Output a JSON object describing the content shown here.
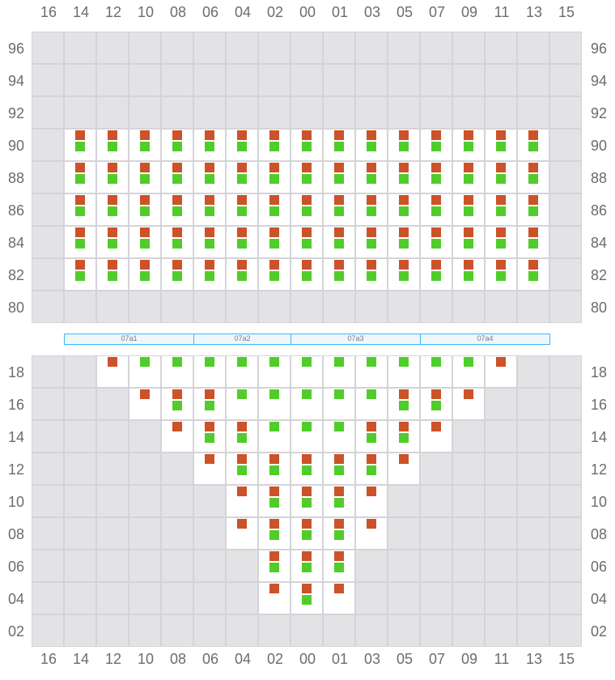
{
  "colors": {
    "orange": "#cc5229",
    "green": "#50cd2a",
    "unavailable": "#e3e3e6",
    "empty": "#ffffff",
    "zone_border": "#3bb8f0",
    "zone_fill": "#eef6fe"
  },
  "columns": [
    "16",
    "14",
    "12",
    "10",
    "08",
    "06",
    "04",
    "02",
    "00",
    "01",
    "03",
    "05",
    "07",
    "09",
    "11",
    "13",
    "15"
  ],
  "zones": [
    {
      "label": "07a1",
      "span": 4
    },
    {
      "label": "07a2",
      "span": 3
    },
    {
      "label": "07a3",
      "span": 4
    },
    {
      "label": "07a4",
      "span": 4
    }
  ],
  "upper_section": {
    "rows": [
      {
        "label": "96",
        "cells": [
          "x",
          "x",
          "x",
          "x",
          "x",
          "x",
          "x",
          "x",
          "x",
          "x",
          "x",
          "x",
          "x",
          "x",
          "x",
          "x",
          "x"
        ]
      },
      {
        "label": "94",
        "cells": [
          "x",
          "x",
          "x",
          "x",
          "x",
          "x",
          "x",
          "x",
          "x",
          "x",
          "x",
          "x",
          "x",
          "x",
          "x",
          "x",
          "x"
        ]
      },
      {
        "label": "92",
        "cells": [
          "x",
          "x",
          "x",
          "x",
          "x",
          "x",
          "x",
          "x",
          "x",
          "x",
          "x",
          "x",
          "x",
          "x",
          "x",
          "x",
          "x"
        ]
      },
      {
        "label": "90",
        "cells": [
          "x",
          "og",
          "og",
          "og",
          "og",
          "og",
          "og",
          "og",
          "og",
          "og",
          "og",
          "og",
          "og",
          "og",
          "og",
          "og",
          "x"
        ]
      },
      {
        "label": "88",
        "cells": [
          "x",
          "og",
          "og",
          "og",
          "og",
          "og",
          "og",
          "og",
          "og",
          "og",
          "og",
          "og",
          "og",
          "og",
          "og",
          "og",
          "x"
        ]
      },
      {
        "label": "86",
        "cells": [
          "x",
          "og",
          "og",
          "og",
          "og",
          "og",
          "og",
          "og",
          "og",
          "og",
          "og",
          "og",
          "og",
          "og",
          "og",
          "og",
          "x"
        ]
      },
      {
        "label": "84",
        "cells": [
          "x",
          "og",
          "og",
          "og",
          "og",
          "og",
          "og",
          "og",
          "og",
          "og",
          "og",
          "og",
          "og",
          "og",
          "og",
          "og",
          "x"
        ]
      },
      {
        "label": "82",
        "cells": [
          "x",
          "og",
          "og",
          "og",
          "og",
          "og",
          "og",
          "og",
          "og",
          "og",
          "og",
          "og",
          "og",
          "og",
          "og",
          "og",
          "x"
        ]
      },
      {
        "label": "80",
        "cells": [
          "x",
          "x",
          "x",
          "x",
          "x",
          "x",
          "x",
          "x",
          "x",
          "x",
          "x",
          "x",
          "x",
          "x",
          "x",
          "x",
          "x"
        ]
      }
    ]
  },
  "lower_section": {
    "rows": [
      {
        "label": "18",
        "cells": [
          "x",
          "x",
          "o",
          "g",
          "g",
          "g",
          "g",
          "g",
          "g",
          "g",
          "g",
          "g",
          "g",
          "g",
          "o",
          "x",
          "x"
        ]
      },
      {
        "label": "16",
        "cells": [
          "x",
          "x",
          "x",
          "o",
          "og",
          "og",
          "g",
          "g",
          "g",
          "g",
          "g",
          "og",
          "og",
          "o",
          "x",
          "x",
          "x"
        ]
      },
      {
        "label": "14",
        "cells": [
          "x",
          "x",
          "x",
          "x",
          "o",
          "og",
          "og",
          "g",
          "g",
          "g",
          "og",
          "og",
          "o",
          "x",
          "x",
          "x",
          "x"
        ]
      },
      {
        "label": "12",
        "cells": [
          "x",
          "x",
          "x",
          "x",
          "x",
          "o",
          "og",
          "og",
          "og",
          "og",
          "og",
          "o",
          "x",
          "x",
          "x",
          "x",
          "x"
        ]
      },
      {
        "label": "10",
        "cells": [
          "x",
          "x",
          "x",
          "x",
          "x",
          "x",
          "o",
          "og",
          "og",
          "og",
          "o",
          "x",
          "x",
          "x",
          "x",
          "x",
          "x"
        ]
      },
      {
        "label": "08",
        "cells": [
          "x",
          "x",
          "x",
          "x",
          "x",
          "x",
          "o",
          "og",
          "og",
          "og",
          "o",
          "x",
          "x",
          "x",
          "x",
          "x",
          "x"
        ]
      },
      {
        "label": "06",
        "cells": [
          "x",
          "x",
          "x",
          "x",
          "x",
          "x",
          "x",
          "og",
          "og",
          "og",
          "x",
          "x",
          "x",
          "x",
          "x",
          "x",
          "x"
        ]
      },
      {
        "label": "04",
        "cells": [
          "x",
          "x",
          "x",
          "x",
          "x",
          "x",
          "x",
          "o",
          "og",
          "o",
          "x",
          "x",
          "x",
          "x",
          "x",
          "x",
          "x"
        ]
      },
      {
        "label": "02",
        "cells": [
          "x",
          "x",
          "x",
          "x",
          "x",
          "x",
          "x",
          "x",
          "x",
          "x",
          "x",
          "x",
          "x",
          "x",
          "x",
          "x",
          "x"
        ]
      }
    ]
  }
}
